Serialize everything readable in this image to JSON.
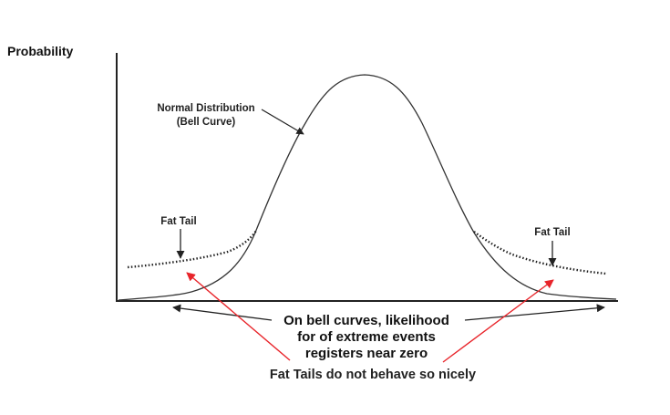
{
  "y_axis_label": "Probability",
  "normal_label_line1": "Normal Distribution",
  "normal_label_line2": "(Bell Curve)",
  "fat_tail_left_label": "Fat Tail",
  "fat_tail_right_label": "Fat Tail",
  "note_line1": "On bell curves, likelihood",
  "note_line2": "for of extreme events",
  "note_line3": "registers near zero",
  "red_note": "Fat Tails do not behave so nicely",
  "colors": {
    "ink": "#222222",
    "red": "#e8242a"
  }
}
